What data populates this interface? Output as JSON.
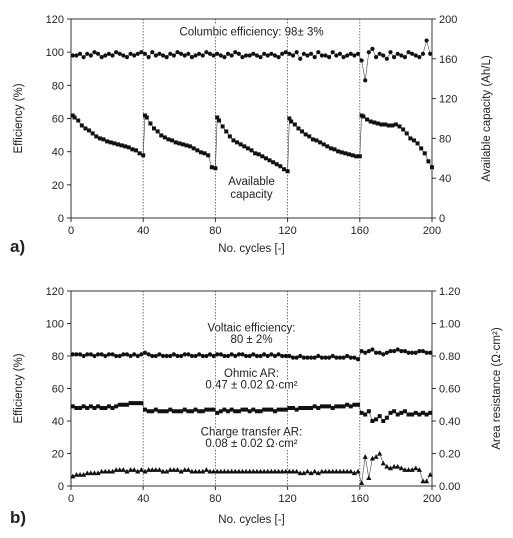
{
  "chart_data": [
    {
      "panel_label": "a)",
      "type": "scatter",
      "xlabel": "No. cycles [-]",
      "ylabel": "Efficiency (%)",
      "y2label": "Available capacity (Ah/L)",
      "xlim": [
        0,
        200
      ],
      "ylim": [
        0,
        120
      ],
      "y2lim": [
        0,
        200
      ],
      "xticks": [
        "0",
        "40",
        "80",
        "120",
        "160",
        "200"
      ],
      "yticks": [
        "0",
        "20",
        "40",
        "60",
        "80",
        "100",
        "120"
      ],
      "y2ticks": [
        "0",
        "40",
        "80",
        "120",
        "160",
        "200"
      ],
      "vlines": [
        40,
        80,
        120,
        160
      ],
      "annotations": [
        {
          "text": "Columbic efficiency: 98± 3%",
          "x": 100,
          "y": 110
        },
        {
          "text": "Available",
          "x": 100,
          "y": 20
        },
        {
          "text": "capacity",
          "x": 100,
          "y": 12
        }
      ],
      "series": [
        {
          "axis": "left",
          "marker": "circle",
          "x": [
            1,
            3,
            5,
            7,
            9,
            11,
            13,
            15,
            17,
            19,
            21,
            23,
            25,
            27,
            29,
            31,
            33,
            35,
            37,
            39,
            41,
            43,
            45,
            47,
            49,
            51,
            53,
            55,
            57,
            59,
            61,
            63,
            65,
            67,
            69,
            71,
            73,
            75,
            77,
            79,
            81,
            83,
            85,
            87,
            89,
            91,
            93,
            95,
            97,
            99,
            101,
            103,
            105,
            107,
            109,
            111,
            113,
            115,
            117,
            119,
            121,
            123,
            125,
            127,
            129,
            131,
            133,
            135,
            137,
            139,
            141,
            143,
            145,
            147,
            149,
            151,
            153,
            155,
            157,
            159,
            161,
            163,
            165,
            167,
            169,
            171,
            173,
            175,
            177,
            179,
            181,
            183,
            185,
            187,
            189,
            191,
            193,
            195,
            197,
            199
          ],
          "y": [
            98,
            98,
            99,
            97,
            99,
            98,
            100,
            99,
            97,
            98,
            99,
            98,
            100,
            99,
            98,
            97,
            99,
            98,
            99,
            100,
            99,
            97,
            100,
            98,
            99,
            98,
            97,
            99,
            98,
            100,
            99,
            98,
            99,
            97,
            98,
            99,
            98,
            100,
            99,
            98,
            99,
            98,
            97,
            99,
            98,
            100,
            99,
            97,
            98,
            98,
            99,
            98,
            97,
            99,
            98,
            99,
            98,
            97,
            99,
            100,
            99,
            98,
            100,
            96,
            99,
            98,
            99,
            97,
            100,
            98,
            98,
            97,
            100,
            98,
            99,
            97,
            98,
            99,
            98,
            99,
            95,
            83,
            100,
            102,
            97,
            99,
            98,
            96,
            100,
            97,
            99,
            98,
            97,
            100,
            99,
            98,
            97,
            99,
            107,
            99
          ]
        },
        {
          "axis": "right",
          "marker": "square",
          "x": [
            1,
            2,
            4,
            6,
            8,
            10,
            12,
            14,
            16,
            18,
            20,
            22,
            24,
            26,
            28,
            30,
            32,
            34,
            36,
            38,
            40,
            41,
            42,
            44,
            46,
            48,
            50,
            52,
            54,
            56,
            58,
            60,
            62,
            64,
            66,
            68,
            70,
            72,
            74,
            76,
            78,
            80,
            81,
            82,
            84,
            86,
            88,
            90,
            92,
            94,
            96,
            98,
            100,
            102,
            104,
            106,
            108,
            110,
            112,
            114,
            116,
            118,
            120,
            121,
            122,
            124,
            126,
            128,
            130,
            132,
            134,
            136,
            138,
            140,
            142,
            144,
            146,
            148,
            150,
            152,
            154,
            156,
            158,
            160,
            161,
            162,
            164,
            166,
            168,
            170,
            172,
            174,
            176,
            178,
            180,
            182,
            184,
            186,
            188,
            190,
            192,
            194,
            196,
            198,
            200
          ],
          "y": [
            103,
            101,
            98,
            93,
            90,
            88,
            85,
            82,
            80,
            79,
            77,
            76,
            75,
            74,
            73,
            72,
            71,
            69,
            68,
            65,
            63,
            103,
            101,
            95,
            90,
            87,
            83,
            81,
            79,
            78,
            76,
            75,
            74,
            73,
            72,
            70,
            68,
            66,
            65,
            63,
            51,
            50,
            101,
            98,
            92,
            87,
            82,
            78,
            76,
            74,
            72,
            70,
            68,
            65,
            64,
            62,
            60,
            58,
            56,
            54,
            52,
            49,
            47,
            100,
            97,
            94,
            90,
            87,
            84,
            82,
            79,
            78,
            76,
            74,
            72,
            70,
            69,
            67,
            66,
            65,
            64,
            63,
            62,
            62,
            103,
            102,
            99,
            97,
            96,
            95,
            94,
            94,
            93,
            93,
            94,
            92,
            89,
            85,
            80,
            78,
            75,
            70,
            65,
            57,
            51
          ]
        }
      ]
    },
    {
      "panel_label": "b)",
      "type": "scatter",
      "xlabel": "No. cycles [-]",
      "ylabel": "Efficiency (%)",
      "y2label": "Area resistance (Ω·cm²)",
      "xlim": [
        0,
        200
      ],
      "ylim": [
        0,
        120
      ],
      "y2lim": [
        0,
        1.2
      ],
      "xticks": [
        "0",
        "40",
        "80",
        "120",
        "160",
        "200"
      ],
      "yticks": [
        "0",
        "20",
        "40",
        "60",
        "80",
        "100",
        "120"
      ],
      "y2ticks": [
        "0.00",
        "0.20",
        "0.40",
        "0.60",
        "0.80",
        "1.00",
        "1.20"
      ],
      "vlines": [
        40,
        80,
        120,
        160
      ],
      "annotations": [
        {
          "text": "Voltaic efficiency:",
          "x": 100,
          "y": 95
        },
        {
          "text": "80 ± 2%",
          "x": 100,
          "y": 88
        },
        {
          "text": "Ohmic AR:",
          "x": 100,
          "y": 67
        },
        {
          "text": "0.47 ± 0.02 Ω·cm²",
          "x": 100,
          "y": 60
        },
        {
          "text": "Charge transfer AR:",
          "x": 100,
          "y": 31
        },
        {
          "text": "0.08 ± 0.02 Ω·cm²",
          "x": 100,
          "y": 24
        }
      ],
      "series": [
        {
          "axis": "left",
          "marker": "circle",
          "x": [
            1,
            3,
            5,
            7,
            9,
            11,
            13,
            15,
            17,
            19,
            21,
            23,
            25,
            27,
            29,
            31,
            33,
            35,
            37,
            39,
            41,
            43,
            45,
            47,
            49,
            51,
            53,
            55,
            57,
            59,
            61,
            63,
            65,
            67,
            69,
            71,
            73,
            75,
            77,
            79,
            81,
            83,
            85,
            87,
            89,
            91,
            93,
            95,
            97,
            99,
            101,
            103,
            105,
            107,
            109,
            111,
            113,
            115,
            117,
            119,
            121,
            123,
            125,
            127,
            129,
            131,
            133,
            135,
            137,
            139,
            141,
            143,
            145,
            147,
            149,
            151,
            153,
            155,
            157,
            159,
            161,
            163,
            165,
            167,
            169,
            171,
            173,
            175,
            177,
            179,
            181,
            183,
            185,
            187,
            189,
            191,
            193,
            195,
            197,
            199
          ],
          "y": [
            81,
            81,
            81,
            80,
            81,
            81,
            80,
            81,
            81,
            80,
            81,
            81,
            80,
            80,
            81,
            81,
            80,
            81,
            80,
            81,
            82,
            81,
            80,
            80,
            81,
            80,
            80,
            80,
            81,
            80,
            80,
            81,
            81,
            80,
            80,
            81,
            80,
            80,
            81,
            80,
            81,
            81,
            80,
            80,
            81,
            80,
            81,
            81,
            80,
            80,
            81,
            80,
            80,
            81,
            80,
            81,
            80,
            81,
            80,
            80,
            80,
            79,
            79,
            80,
            79,
            79,
            79,
            79,
            80,
            79,
            79,
            79,
            80,
            79,
            79,
            79,
            80,
            79,
            79,
            78,
            83,
            82,
            83,
            84,
            82,
            82,
            81,
            82,
            83,
            83,
            84,
            83,
            83,
            82,
            82,
            82,
            83,
            83,
            82,
            82
          ]
        },
        {
          "axis": "right",
          "marker": "square",
          "x": [
            1,
            3,
            5,
            7,
            9,
            11,
            13,
            15,
            17,
            19,
            21,
            23,
            25,
            27,
            29,
            31,
            33,
            35,
            37,
            39,
            41,
            43,
            45,
            47,
            49,
            51,
            53,
            55,
            57,
            59,
            61,
            63,
            65,
            67,
            69,
            71,
            73,
            75,
            77,
            79,
            81,
            83,
            85,
            87,
            89,
            91,
            93,
            95,
            97,
            99,
            101,
            103,
            105,
            107,
            109,
            111,
            113,
            115,
            117,
            119,
            121,
            123,
            125,
            127,
            129,
            131,
            133,
            135,
            137,
            139,
            141,
            143,
            145,
            147,
            149,
            151,
            153,
            155,
            157,
            159,
            161,
            163,
            165,
            167,
            169,
            171,
            173,
            175,
            177,
            179,
            181,
            183,
            185,
            187,
            189,
            191,
            193,
            195,
            197,
            199
          ],
          "y": [
            0.49,
            0.48,
            0.48,
            0.49,
            0.48,
            0.49,
            0.48,
            0.49,
            0.48,
            0.48,
            0.49,
            0.48,
            0.49,
            0.5,
            0.5,
            0.5,
            0.51,
            0.51,
            0.51,
            0.51,
            0.47,
            0.46,
            0.46,
            0.47,
            0.46,
            0.46,
            0.46,
            0.47,
            0.46,
            0.46,
            0.46,
            0.47,
            0.46,
            0.46,
            0.47,
            0.46,
            0.46,
            0.47,
            0.47,
            0.47,
            0.45,
            0.46,
            0.47,
            0.46,
            0.47,
            0.46,
            0.46,
            0.47,
            0.47,
            0.46,
            0.47,
            0.46,
            0.46,
            0.47,
            0.47,
            0.47,
            0.46,
            0.47,
            0.47,
            0.47,
            0.48,
            0.48,
            0.47,
            0.48,
            0.48,
            0.48,
            0.48,
            0.49,
            0.48,
            0.49,
            0.49,
            0.49,
            0.48,
            0.49,
            0.49,
            0.49,
            0.5,
            0.49,
            0.5,
            0.5,
            0.45,
            0.44,
            0.46,
            0.4,
            0.41,
            0.43,
            0.4,
            0.42,
            0.45,
            0.46,
            0.44,
            0.45,
            0.46,
            0.44,
            0.44,
            0.45,
            0.44,
            0.45,
            0.44,
            0.45
          ]
        },
        {
          "axis": "right",
          "marker": "triangle",
          "x": [
            1,
            3,
            5,
            7,
            9,
            11,
            13,
            15,
            17,
            19,
            21,
            23,
            25,
            27,
            29,
            31,
            33,
            35,
            37,
            39,
            41,
            43,
            45,
            47,
            49,
            51,
            53,
            55,
            57,
            59,
            61,
            63,
            65,
            67,
            69,
            71,
            73,
            75,
            77,
            79,
            81,
            83,
            85,
            87,
            89,
            91,
            93,
            95,
            97,
            99,
            101,
            103,
            105,
            107,
            109,
            111,
            113,
            115,
            117,
            119,
            121,
            123,
            125,
            127,
            129,
            131,
            133,
            135,
            137,
            139,
            141,
            143,
            145,
            147,
            149,
            151,
            153,
            155,
            157,
            159,
            161,
            163,
            165,
            167,
            169,
            171,
            173,
            175,
            177,
            179,
            181,
            183,
            185,
            187,
            189,
            191,
            193,
            195,
            197,
            199
          ],
          "y": [
            0.06,
            0.07,
            0.07,
            0.07,
            0.08,
            0.08,
            0.08,
            0.08,
            0.09,
            0.09,
            0.09,
            0.09,
            0.1,
            0.1,
            0.1,
            0.09,
            0.1,
            0.1,
            0.09,
            0.1,
            0.09,
            0.1,
            0.1,
            0.1,
            0.1,
            0.09,
            0.09,
            0.1,
            0.1,
            0.1,
            0.09,
            0.1,
            0.1,
            0.09,
            0.09,
            0.09,
            0.09,
            0.1,
            0.09,
            0.09,
            0.09,
            0.09,
            0.09,
            0.09,
            0.09,
            0.09,
            0.09,
            0.09,
            0.09,
            0.09,
            0.09,
            0.09,
            0.09,
            0.09,
            0.09,
            0.09,
            0.09,
            0.09,
            0.09,
            0.09,
            0.09,
            0.09,
            0.09,
            0.08,
            0.08,
            0.09,
            0.08,
            0.09,
            0.08,
            0.09,
            0.09,
            0.09,
            0.09,
            0.09,
            0.09,
            0.09,
            0.09,
            0.09,
            0.08,
            0.09,
            0.02,
            0.18,
            0.05,
            0.17,
            0.18,
            0.2,
            0.14,
            0.12,
            0.11,
            0.12,
            0.12,
            0.11,
            0.1,
            0.1,
            0.1,
            0.11,
            0.1,
            0.03,
            0.03,
            0.07
          ]
        }
      ]
    }
  ]
}
